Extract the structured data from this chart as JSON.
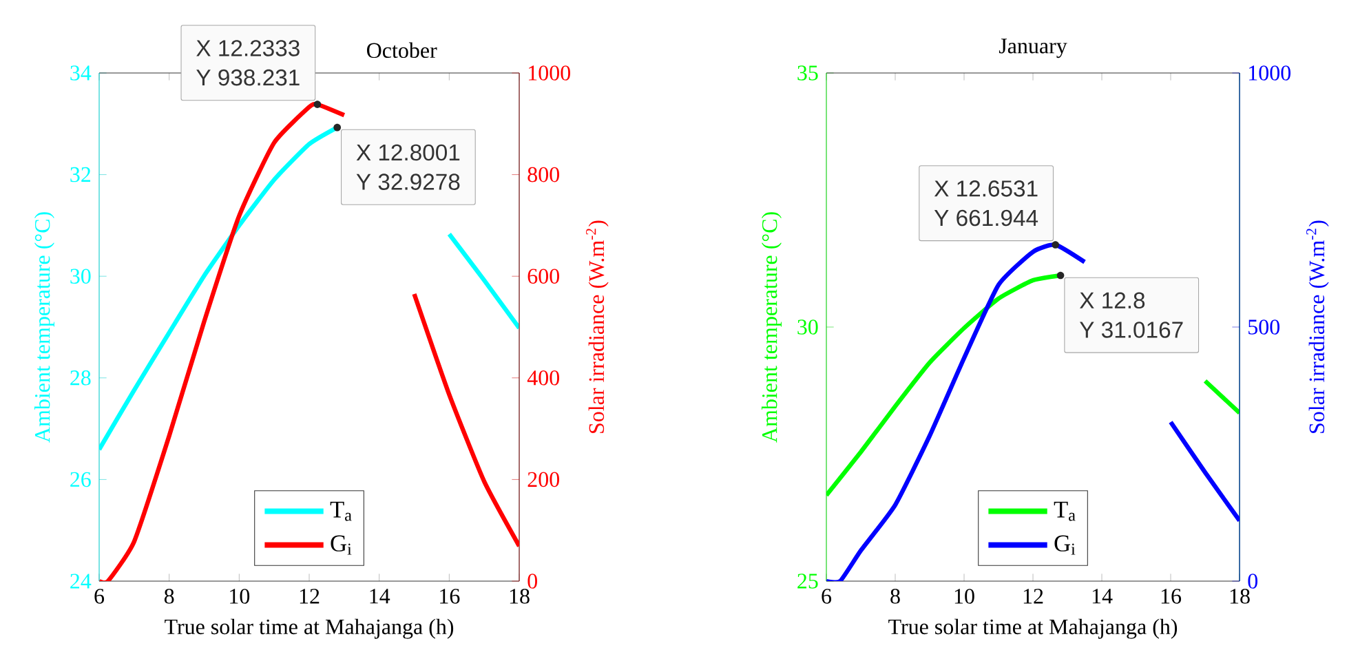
{
  "chart_data": [
    {
      "type": "line",
      "title": "October",
      "xlabel": "True solar time at Mahajanga (h)",
      "ylabel": "Ambient temperature (°C)",
      "y2label": "Solar irradiance (W.m$^{-2}$)",
      "xlim": [
        6,
        18
      ],
      "xticks": [
        6,
        8,
        10,
        12,
        14,
        16,
        18
      ],
      "ylim": [
        24,
        34
      ],
      "yticks": [
        24,
        26,
        28,
        30,
        32,
        34
      ],
      "y2lim": [
        0,
        1000
      ],
      "y2ticks": [
        0,
        200,
        400,
        600,
        800,
        1000
      ],
      "legend": "bottom",
      "series": [
        {
          "name": "T$_{a}$",
          "color": "#00ffff",
          "x": [
            6,
            7,
            8,
            9,
            10,
            11,
            12,
            12.8001,
            13.5,
            14,
            15,
            16,
            17,
            18
          ],
          "values": [
            26.59,
            27.76,
            28.89,
            30.01,
            31.0,
            31.9,
            32.6,
            32.9278,
            null,
            null,
            null,
            30.83,
            29.92,
            28.98
          ]
        },
        {
          "name": "G$_{i}$",
          "color": "#ff0000",
          "axis": "y2",
          "x": [
            6,
            6.25,
            7,
            8,
            9,
            10,
            11,
            12,
            12.2333,
            13,
            13.5,
            14,
            15,
            16,
            17,
            18
          ],
          "values": [
            0,
            0,
            78,
            286,
            511,
            719,
            863,
            933,
            938.231,
            917,
            null,
            null,
            565,
            367,
            196,
            69
          ]
        }
      ],
      "annotations": [
        "X 12.2333",
        "Y 938.231",
        "X 12.8001",
        "Y 32.9278"
      ]
    },
    {
      "type": "line",
      "title": "January",
      "xlabel": "True solar time at Mahajanga (h)",
      "ylabel": "Ambient temperature (°C)",
      "y2label": "Solar irradiance (W.m$^{-2}$)",
      "xlim": [
        6,
        18
      ],
      "xticks": [
        6,
        8,
        10,
        12,
        14,
        16,
        18
      ],
      "ylim": [
        25,
        35
      ],
      "yticks": [
        25,
        30,
        35
      ],
      "y2lim": [
        0,
        1000
      ],
      "y2ticks": [
        0,
        500,
        1000
      ],
      "legend": "bottom",
      "series": [
        {
          "name": "T$_{a}$",
          "color": "#00ff00",
          "x": [
            6,
            7,
            8,
            9,
            10,
            11,
            12,
            12.8,
            14,
            15,
            16,
            17,
            18
          ],
          "values": [
            26.69,
            27.54,
            28.44,
            29.3,
            29.98,
            30.56,
            30.92,
            31.0167,
            null,
            null,
            null,
            28.94,
            28.31
          ]
        },
        {
          "name": "G$_{i}$",
          "color": "#0000ff",
          "axis": "y2",
          "x": [
            6,
            6.4,
            7,
            8,
            9,
            10,
            11,
            12,
            12.6531,
            13.5,
            14,
            15,
            16,
            17,
            18
          ],
          "values": [
            0,
            0,
            60,
            150,
            286,
            439,
            583,
            648,
            661.944,
            628,
            null,
            null,
            313,
            214,
            119
          ]
        }
      ],
      "annotations": [
        "X 12.6531",
        "Y 661.944",
        "X 12.8",
        "Y 31.0167"
      ]
    }
  ]
}
